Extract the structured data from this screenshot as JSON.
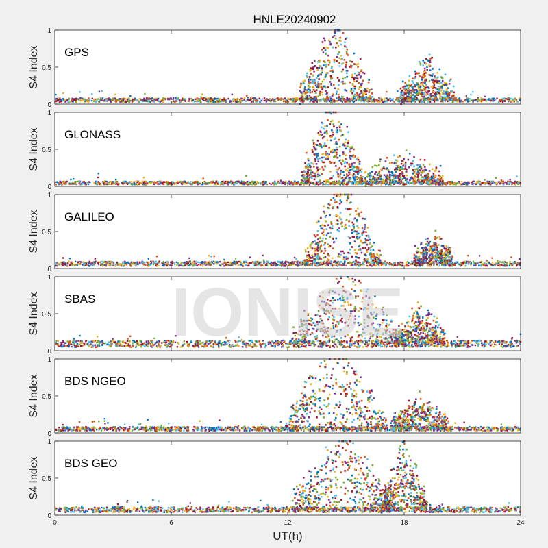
{
  "chart_data": {
    "type": "scatter",
    "title": "HNLE20240902",
    "xlabel": "UT(h)",
    "ylabel": "S4 Index",
    "xlim": [
      0,
      24
    ],
    "ylim": [
      0,
      1
    ],
    "xticks": [
      0,
      6,
      12,
      18,
      24
    ],
    "yticks": [
      0,
      0.5,
      1
    ],
    "grid": false,
    "watermark": "IONISE",
    "colors": [
      "#0072BD",
      "#D95319",
      "#EDB120",
      "#7E2F8E",
      "#77AC30",
      "#4DBEEE",
      "#A2142F"
    ],
    "panels": [
      {
        "label": "GPS",
        "background_s4": 0.06,
        "bursts": [
          {
            "center": 14.5,
            "half_width": 1.9,
            "peak": 0.8
          },
          {
            "center": 19.2,
            "half_width": 1.4,
            "peak": 0.35
          }
        ]
      },
      {
        "label": "GLONASS",
        "background_s4": 0.05,
        "bursts": [
          {
            "center": 14.3,
            "half_width": 1.6,
            "peak": 0.85
          },
          {
            "center": 18.0,
            "half_width": 2.0,
            "peak": 0.2
          }
        ]
      },
      {
        "label": "GALILEO",
        "background_s4": 0.07,
        "bursts": [
          {
            "center": 14.8,
            "half_width": 2.0,
            "peak": 0.85
          },
          {
            "center": 19.5,
            "half_width": 1.0,
            "peak": 0.2
          }
        ]
      },
      {
        "label": "SBAS",
        "background_s4": 0.1,
        "bursts": [
          {
            "center": 15.0,
            "half_width": 2.8,
            "peak": 0.75
          },
          {
            "center": 18.8,
            "half_width": 1.3,
            "peak": 0.3
          }
        ]
      },
      {
        "label": "BDS NGEO",
        "background_s4": 0.06,
        "bursts": [
          {
            "center": 14.5,
            "half_width": 2.6,
            "peak": 0.85
          },
          {
            "center": 18.8,
            "half_width": 1.5,
            "peak": 0.25
          }
        ]
      },
      {
        "label": "BDS GEO",
        "background_s4": 0.08,
        "bursts": [
          {
            "center": 14.8,
            "half_width": 2.6,
            "peak": 0.8
          },
          {
            "center": 18.0,
            "half_width": 1.2,
            "peak": 0.6
          }
        ]
      }
    ]
  }
}
